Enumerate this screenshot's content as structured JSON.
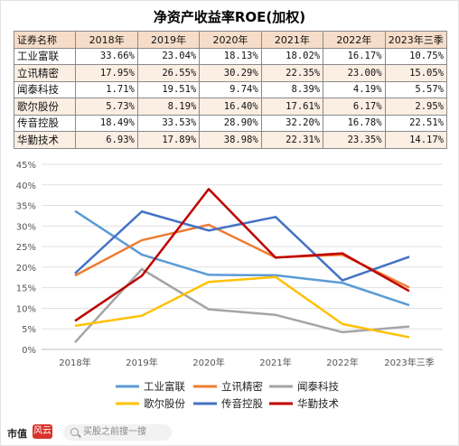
{
  "title": "净资产收益率ROE(加权)",
  "table": {
    "corner": "证券名称",
    "columns": [
      "2018年",
      "2019年",
      "2020年",
      "2021年",
      "2022年",
      "2023年三季"
    ],
    "rows": [
      {
        "name": "工业富联",
        "values": [
          "33.66%",
          "23.04%",
          "18.13%",
          "18.02%",
          "16.17%",
          "10.75%"
        ]
      },
      {
        "name": "立讯精密",
        "values": [
          "17.95%",
          "26.55%",
          "30.29%",
          "22.35%",
          "23.00%",
          "15.05%"
        ]
      },
      {
        "name": "闻泰科技",
        "values": [
          "1.71%",
          "19.51%",
          "9.74%",
          "8.39%",
          "4.19%",
          "5.57%"
        ]
      },
      {
        "name": "歌尔股份",
        "values": [
          "5.73%",
          "8.19%",
          "16.40%",
          "17.61%",
          "6.17%",
          "2.95%"
        ]
      },
      {
        "name": "传音控股",
        "values": [
          "18.49%",
          "33.53%",
          "28.90%",
          "32.20%",
          "16.78%",
          "22.51%"
        ]
      },
      {
        "name": "华勤技术",
        "values": [
          "6.93%",
          "17.89%",
          "38.98%",
          "22.31%",
          "23.35%",
          "14.17%"
        ]
      }
    ]
  },
  "chart_data": {
    "type": "line",
    "x": [
      "2018年",
      "2019年",
      "2020年",
      "2021年",
      "2022年",
      "2023年三季"
    ],
    "ylim": [
      0,
      45
    ],
    "yticks": [
      "0%",
      "5%",
      "10%",
      "15%",
      "20%",
      "25%",
      "30%",
      "35%",
      "40%",
      "45%"
    ],
    "grid": true,
    "legend_position": "bottom",
    "series": [
      {
        "name": "工业富联",
        "color": "#5b9bd5",
        "values": [
          33.66,
          23.04,
          18.13,
          18.02,
          16.17,
          10.75
        ]
      },
      {
        "name": "立讯精密",
        "color": "#ed7d31",
        "values": [
          17.95,
          26.55,
          30.29,
          22.35,
          23.0,
          15.05
        ]
      },
      {
        "name": "闻泰科技",
        "color": "#a5a5a5",
        "values": [
          1.71,
          19.51,
          9.74,
          8.39,
          4.19,
          5.57
        ]
      },
      {
        "name": "歌尔股份",
        "color": "#ffc000",
        "values": [
          5.73,
          8.19,
          16.4,
          17.61,
          6.17,
          2.95
        ]
      },
      {
        "name": "传音控股",
        "color": "#4472c4",
        "values": [
          18.49,
          33.53,
          28.9,
          32.2,
          16.78,
          22.51
        ]
      },
      {
        "name": "华勤技术",
        "color": "#c00000",
        "values": [
          6.93,
          17.89,
          38.98,
          22.31,
          23.35,
          14.17
        ]
      }
    ]
  },
  "footer": {
    "brand": "市值",
    "brand_mark": "风云",
    "search_placeholder": "买股之前搜一搜",
    "search_icon": "search-icon"
  }
}
